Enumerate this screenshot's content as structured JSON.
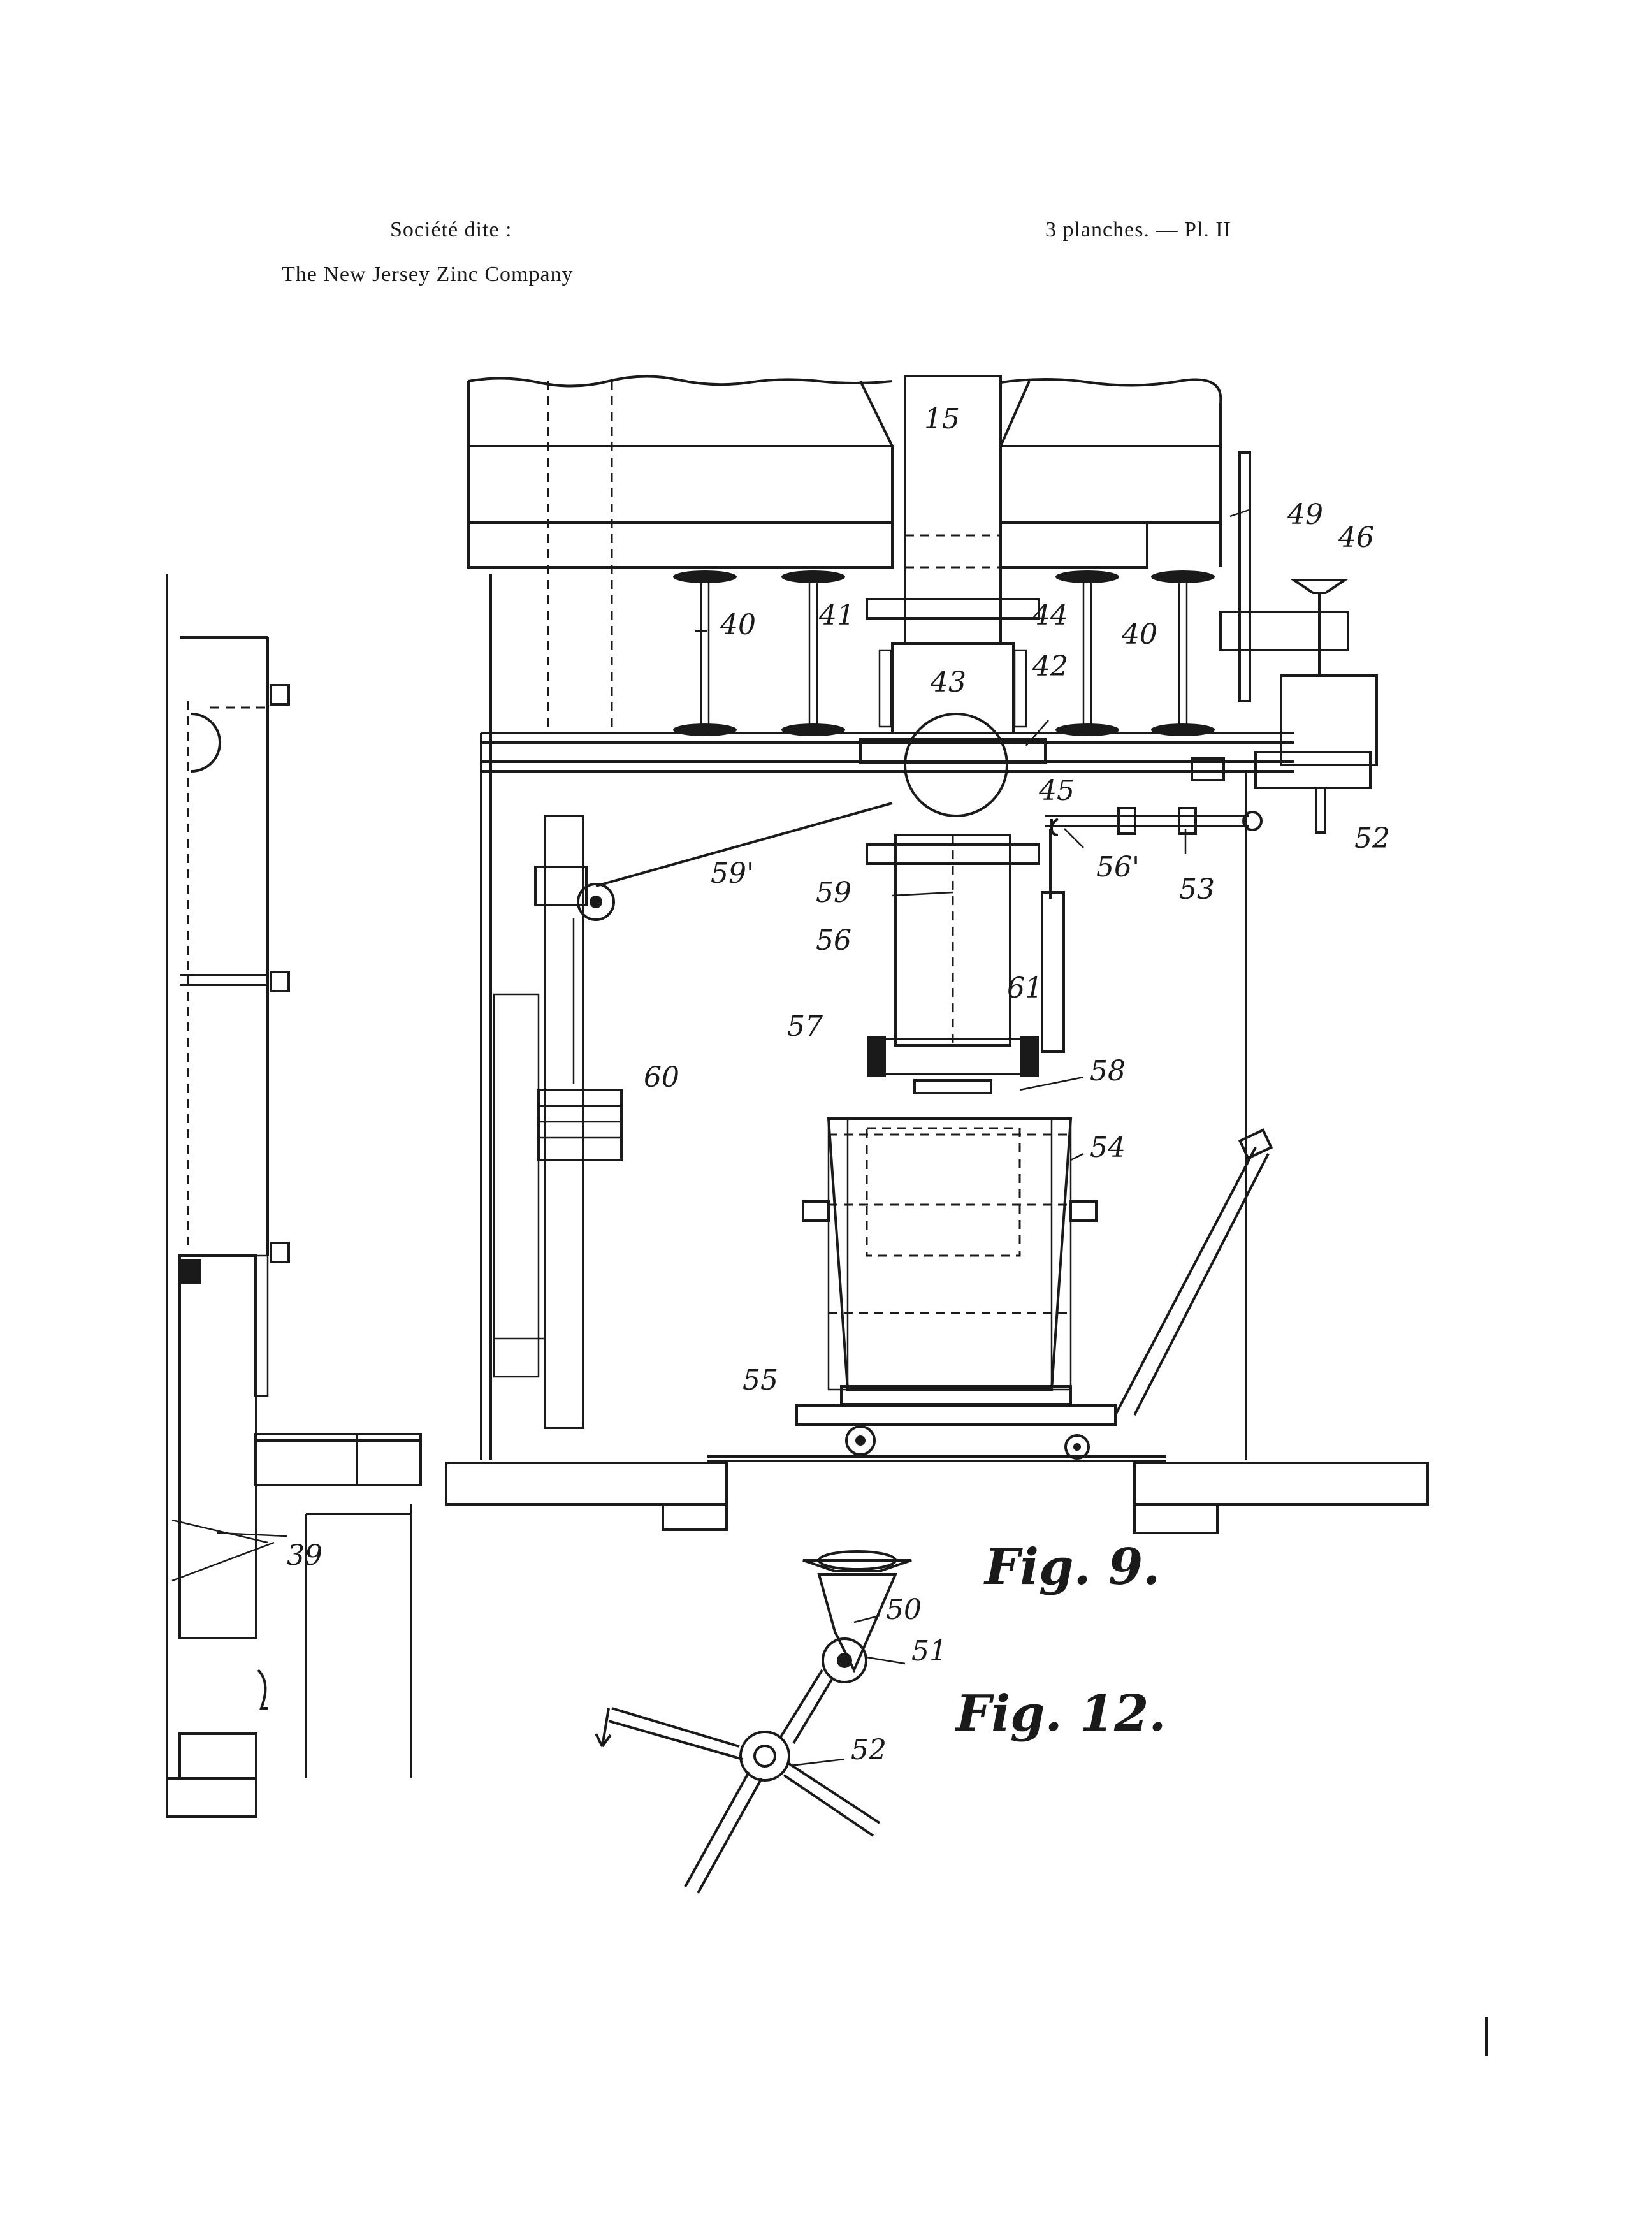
{
  "header": {
    "company_label": "Société dite :",
    "company_name": "The New Jersey Zinc Company",
    "plate_info": "3 planches. — Pl. II"
  },
  "figures": {
    "fig9": "Fig. 9.",
    "fig12": "Fig. 12."
  },
  "reference_numerals": {
    "n15": "15",
    "n49": "49",
    "n46": "46",
    "n40a": "40",
    "n41": "41",
    "n44": "44",
    "n40b": "40",
    "n43": "43",
    "n42": "42",
    "n45": "45",
    "n52a": "52",
    "n59p": "59'",
    "n56p": "56'",
    "n53": "53",
    "n59": "59",
    "n56": "56",
    "n61": "61",
    "n57": "57",
    "n58": "58",
    "n60": "60",
    "n54": "54",
    "n55": "55",
    "n39": "39",
    "n50": "50",
    "n51": "51",
    "n52b": "52"
  }
}
